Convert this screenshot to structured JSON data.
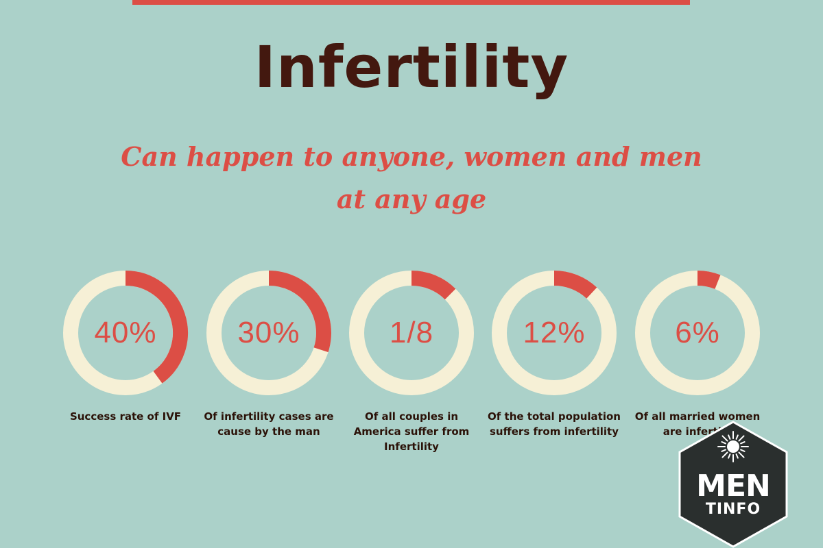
{
  "title": "Infertility",
  "subtitle": "Can happen to anyone, women and men at any age",
  "colors": {
    "background": "#abd1c9",
    "accent": "#dc4e45",
    "ring_track": "#f6f0d6",
    "title": "#43180f",
    "logo_bg": "#2a2f2e"
  },
  "chart_data": {
    "type": "donut",
    "items": [
      {
        "label": "40%",
        "value": 0.4,
        "caption": "Success rate of IVF"
      },
      {
        "label": "30%",
        "value": 0.3,
        "caption": "Of infertility cases are cause by the man"
      },
      {
        "label": "1/8",
        "value": 0.125,
        "caption": "Of all couples in America suffer from Infertility"
      },
      {
        "label": "12%",
        "value": 0.12,
        "caption": "Of the total population suffers from infertility"
      },
      {
        "label": "6%",
        "value": 0.06,
        "caption": "Of all married women are infertile"
      }
    ]
  },
  "logo": {
    "top": "MEN",
    "bottom": "TINFO",
    "icon": "sun-icon"
  }
}
